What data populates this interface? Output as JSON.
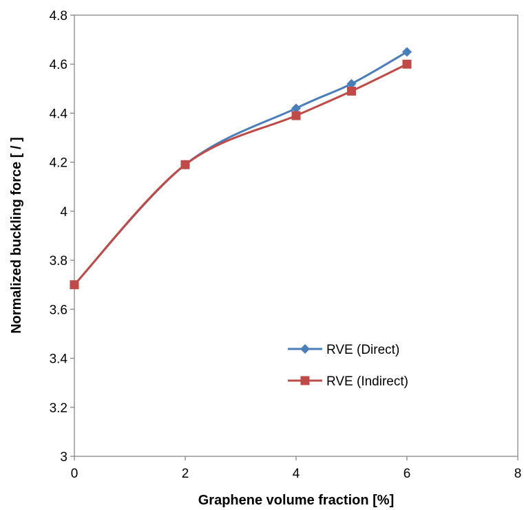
{
  "chart_data": {
    "type": "line",
    "title": "",
    "xlabel": "Graphene volume fraction [%]",
    "ylabel": "Normalized  buckling force  [ / ]",
    "xlim": [
      0,
      8
    ],
    "ylim": [
      3,
      4.8
    ],
    "xticks": [
      "0",
      "2",
      "4",
      "6",
      "8"
    ],
    "yticks": [
      "3",
      "3.2",
      "3.4",
      "3.6",
      "3.8",
      "4",
      "4.2",
      "4.4",
      "4.6",
      "4.8"
    ],
    "grid": false,
    "smooth": true,
    "legend_position": "bottom-right",
    "series": [
      {
        "name": "RVE (Direct)",
        "color": "#4a7ebb",
        "marker": "diamond",
        "x": [
          0,
          2,
          4,
          5,
          6
        ],
        "y": [
          3.7,
          4.19,
          4.42,
          4.52,
          4.65
        ]
      },
      {
        "name": "RVE (Indirect)",
        "color": "#be4b48",
        "marker": "square",
        "x": [
          0,
          2,
          4,
          5,
          6
        ],
        "y": [
          3.7,
          4.19,
          4.39,
          4.49,
          4.6
        ]
      }
    ]
  }
}
